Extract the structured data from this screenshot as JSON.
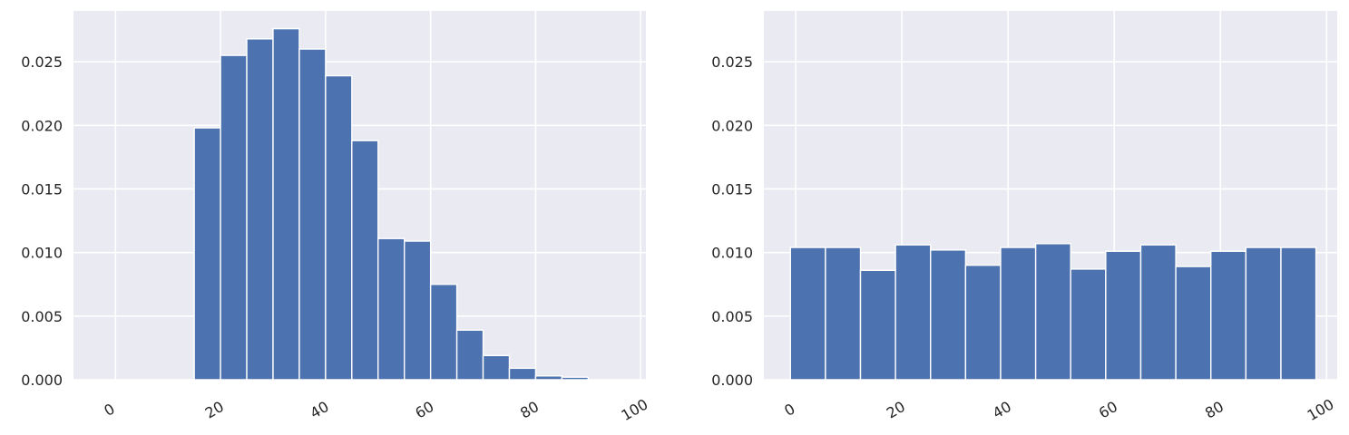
{
  "chart_data": [
    {
      "type": "bar",
      "histogram": true,
      "bins": [
        {
          "x0": 15,
          "x1": 20,
          "value": 0.0198
        },
        {
          "x0": 20,
          "x1": 25,
          "value": 0.0255
        },
        {
          "x0": 25,
          "x1": 30,
          "value": 0.0268
        },
        {
          "x0": 30,
          "x1": 35,
          "value": 0.0276
        },
        {
          "x0": 35,
          "x1": 40,
          "value": 0.026
        },
        {
          "x0": 40,
          "x1": 45,
          "value": 0.0239
        },
        {
          "x0": 45,
          "x1": 50,
          "value": 0.0188
        },
        {
          "x0": 50,
          "x1": 55,
          "value": 0.0111
        },
        {
          "x0": 55,
          "x1": 60,
          "value": 0.0109
        },
        {
          "x0": 60,
          "x1": 65,
          "value": 0.0075
        },
        {
          "x0": 65,
          "x1": 70,
          "value": 0.0039
        },
        {
          "x0": 70,
          "x1": 75,
          "value": 0.0019
        },
        {
          "x0": 75,
          "x1": 80,
          "value": 0.0009
        },
        {
          "x0": 80,
          "x1": 85,
          "value": 0.0003
        },
        {
          "x0": 85,
          "x1": 90,
          "value": 0.0002
        }
      ],
      "xlim": [
        -8,
        101
      ],
      "ylim": [
        0,
        0.029
      ],
      "xticks": [
        "0",
        "20",
        "40",
        "60",
        "80",
        "100"
      ],
      "yticks": [
        "0.000",
        "0.005",
        "0.010",
        "0.015",
        "0.020",
        "0.025"
      ],
      "title": "",
      "xlabel": "",
      "ylabel": "",
      "grid": true
    },
    {
      "type": "bar",
      "histogram": true,
      "bins": [
        {
          "x0": -1,
          "x1": 5.6,
          "value": 0.0104
        },
        {
          "x0": 5.6,
          "x1": 12.2,
          "value": 0.0104
        },
        {
          "x0": 12.2,
          "x1": 18.8,
          "value": 0.0086
        },
        {
          "x0": 18.8,
          "x1": 25.4,
          "value": 0.0106
        },
        {
          "x0": 25.4,
          "x1": 32.0,
          "value": 0.0102
        },
        {
          "x0": 32.0,
          "x1": 38.6,
          "value": 0.009
        },
        {
          "x0": 38.6,
          "x1": 45.2,
          "value": 0.0104
        },
        {
          "x0": 45.2,
          "x1": 51.8,
          "value": 0.0107
        },
        {
          "x0": 51.8,
          "x1": 58.4,
          "value": 0.0087
        },
        {
          "x0": 58.4,
          "x1": 65.0,
          "value": 0.0101
        },
        {
          "x0": 65.0,
          "x1": 71.6,
          "value": 0.0106
        },
        {
          "x0": 71.6,
          "x1": 78.2,
          "value": 0.0089
        },
        {
          "x0": 78.2,
          "x1": 84.8,
          "value": 0.0101
        },
        {
          "x0": 84.8,
          "x1": 91.4,
          "value": 0.0104
        },
        {
          "x0": 91.4,
          "x1": 98.0,
          "value": 0.0104
        }
      ],
      "xlim": [
        -6,
        102
      ],
      "ylim": [
        0,
        0.029
      ],
      "xticks": [
        "0",
        "20",
        "40",
        "60",
        "80",
        "100"
      ],
      "yticks": [
        "0.000",
        "0.005",
        "0.010",
        "0.015",
        "0.020",
        "0.025"
      ],
      "title": "",
      "xlabel": "",
      "ylabel": "",
      "grid": true
    }
  ],
  "colors": {
    "bar": "#4c72b0",
    "bar_edge": "#ffffff",
    "axes_bg": "#eaeaf2",
    "grid": "#ffffff",
    "tick_text": "#262626"
  }
}
